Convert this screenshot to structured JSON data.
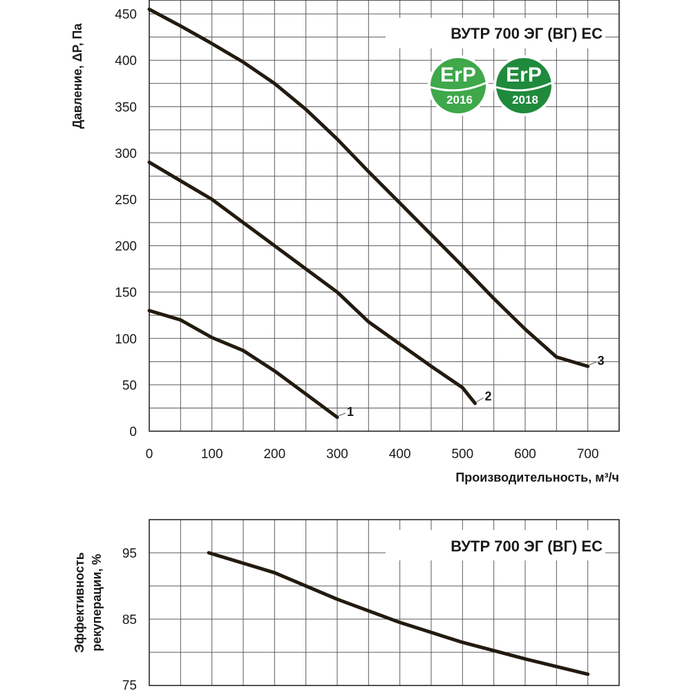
{
  "chart_data": [
    {
      "type": "line",
      "title": "ВУТР 700 ЭГ (ВГ) ЕС",
      "xlabel": "Производительность, м³/ч",
      "ylabel": "Давление, ΔP, Па",
      "xlim": [
        0,
        750
      ],
      "ylim": [
        0,
        465
      ],
      "x_ticks": [
        "0",
        "100",
        "200",
        "300",
        "400",
        "500",
        "600",
        "700"
      ],
      "y_ticks": [
        "0",
        "50",
        "100",
        "150",
        "200",
        "250",
        "300",
        "350",
        "400",
        "450"
      ],
      "grid": true,
      "series": [
        {
          "name": "1",
          "points": [
            [
              0,
              130
            ],
            [
              50,
              120
            ],
            [
              100,
              101
            ],
            [
              150,
              87
            ],
            [
              200,
              65
            ],
            [
              250,
              40
            ],
            [
              300,
              15
            ]
          ]
        },
        {
          "name": "2",
          "points": [
            [
              0,
              290
            ],
            [
              50,
              270
            ],
            [
              100,
              250
            ],
            [
              150,
              225
            ],
            [
              200,
              200
            ],
            [
              250,
              175
            ],
            [
              300,
              150
            ],
            [
              350,
              118
            ],
            [
              400,
              94
            ],
            [
              450,
              70
            ],
            [
              500,
              47
            ],
            [
              520,
              30
            ]
          ]
        },
        {
          "name": "3",
          "points": [
            [
              0,
              455
            ],
            [
              50,
              437
            ],
            [
              100,
              418
            ],
            [
              150,
              398
            ],
            [
              200,
              375
            ],
            [
              250,
              347
            ],
            [
              300,
              315
            ],
            [
              350,
              280
            ],
            [
              400,
              246
            ],
            [
              450,
              212
            ],
            [
              500,
              178
            ],
            [
              550,
              143
            ],
            [
              600,
              110
            ],
            [
              650,
              80
            ],
            [
              700,
              70
            ]
          ]
        }
      ],
      "badges": [
        {
          "brand": "ErP",
          "year": "2016",
          "color": "#3ea84a"
        },
        {
          "brand": "ErP",
          "year": "2018",
          "color": "#1f8a3c"
        }
      ]
    },
    {
      "type": "line",
      "title": "ВУТР 700 ЭГ (ВГ) ЕС",
      "xlabel": "",
      "ylabel": "Эффективность рекуперации, %",
      "ylabel_lines": [
        "Эффективность",
        "рекуперации, %"
      ],
      "xlim": [
        0,
        750
      ],
      "ylim": [
        75,
        100
      ],
      "y_ticks": [
        "95",
        "85",
        "75"
      ],
      "grid": true,
      "series": [
        {
          "name": "",
          "points": [
            [
              95,
              95
            ],
            [
              200,
              92
            ],
            [
              300,
              88
            ],
            [
              400,
              84.5
            ],
            [
              500,
              81.5
            ],
            [
              600,
              79
            ],
            [
              700,
              76.7
            ]
          ]
        }
      ]
    }
  ]
}
